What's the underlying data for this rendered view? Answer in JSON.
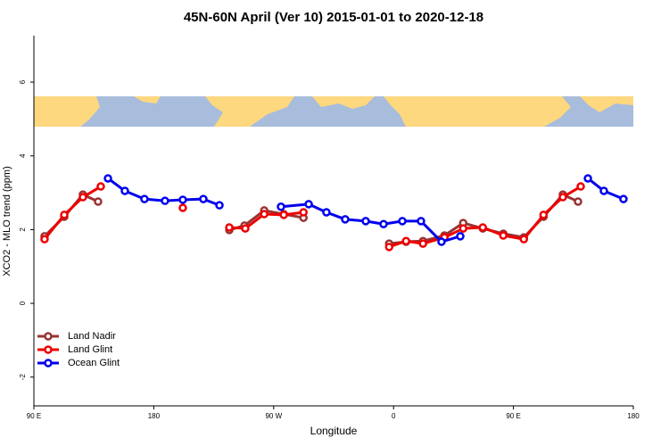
{
  "chart_data": {
    "type": "line",
    "title": "45N-60N April (Ver 10)   2015-01-01 to 2020-12-18",
    "x_label": "Longitude",
    "y_label": "XCO2 - MLO trend (ppm)",
    "xlim": [
      90,
      540
    ],
    "xticks": [
      {
        "value": 90,
        "label": "90 E"
      },
      180,
      {
        "value": 270,
        "label": "90 W"
      },
      {
        "value": 360,
        "label": "0"
      },
      {
        "value": 450,
        "label": "90 E"
      },
      {
        "value": 540,
        "label": "180"
      }
    ],
    "ylim": [
      -2.78,
      7.26
    ],
    "yticks": [
      -2,
      0,
      2,
      4,
      6
    ],
    "legend": "bottomleft",
    "series": [
      {
        "name": "Land Nadir",
        "color": "#993333",
        "x": [
          98.0,
          112.8,
          126.8,
          138.2,
          null,
          236.7,
          248.1,
          262.9,
          277.6,
          292.4,
          null,
          356.7,
          369.4,
          382.1,
          398.2,
          412.3,
          427.0,
          442.4,
          457.8,
          472.6,
          487.1,
          498.5
        ],
        "values": [
          1.82,
          2.35,
          2.95,
          2.76,
          null,
          1.99,
          2.11,
          2.52,
          2.42,
          2.32,
          null,
          1.62,
          1.67,
          1.69,
          1.84,
          2.18,
          2.03,
          1.89,
          1.79,
          2.35,
          2.95,
          2.76
        ]
      },
      {
        "name": "Land Glint",
        "color": "#ee0000",
        "x": [
          98.0,
          112.8,
          126.8,
          140.2,
          null,
          201.8,
          null,
          236.7,
          248.7,
          262.9,
          277.6,
          292.4,
          null,
          356.7,
          369.4,
          382.1,
          398.2,
          412.3,
          427.0,
          442.4,
          457.8,
          472.6,
          487.1,
          500.5
        ],
        "values": [
          1.74,
          2.4,
          2.88,
          3.17,
          null,
          2.59,
          null,
          2.06,
          2.03,
          2.42,
          2.4,
          2.47,
          null,
          1.53,
          1.69,
          1.62,
          1.79,
          2.03,
          2.06,
          1.84,
          1.74,
          2.4,
          2.88,
          3.17
        ]
      },
      {
        "name": "Ocean Glint",
        "color": "#0000ee",
        "x": [
          145.6,
          158.3,
          173.0,
          188.4,
          201.8,
          217.2,
          229.3,
          null,
          275.5,
          296.3,
          309.6,
          323.7,
          339.1,
          352.5,
          366.6,
          380.6,
          396.0,
          410.1,
          null,
          505.9,
          517.9,
          532.6
        ],
        "values": [
          3.39,
          3.05,
          2.83,
          2.78,
          2.81,
          2.83,
          2.66,
          null,
          2.62,
          2.69,
          2.47,
          2.28,
          2.23,
          2.15,
          2.23,
          2.23,
          1.67,
          1.82,
          null,
          3.39,
          3.05,
          2.83
        ]
      }
    ]
  }
}
